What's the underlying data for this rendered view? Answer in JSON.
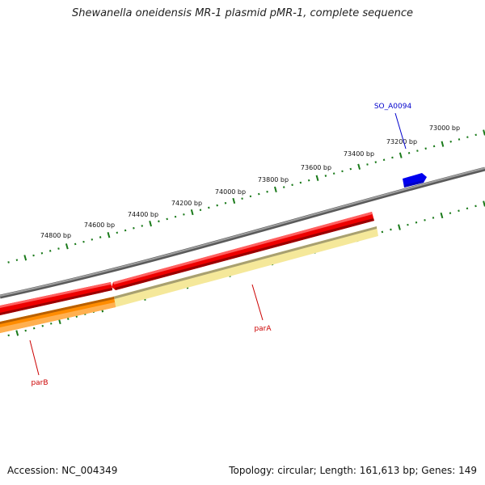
{
  "title": "Shewanella oneidensis MR-1 plasmid pMR-1, complete sequence",
  "footer": {
    "accession_label": "Accession:",
    "accession": "NC_004349",
    "topology_label": "Topology:",
    "topology": "circular",
    "length_label": "Length:",
    "length": "161,613 bp",
    "genes_label": "Genes:",
    "genes": "149"
  },
  "ticks": [
    {
      "label": "73000 bp"
    },
    {
      "label": "73200 bp"
    },
    {
      "label": "73400 bp"
    },
    {
      "label": "73600 bp"
    },
    {
      "label": "73800 bp"
    },
    {
      "label": "74000 bp"
    },
    {
      "label": "74200 bp"
    },
    {
      "label": "74400 bp"
    },
    {
      "label": "74600 bp"
    },
    {
      "label": "74800 bp"
    }
  ],
  "genes": [
    {
      "name": "SO_A0094",
      "color": "#0000cc",
      "strand": "forward"
    },
    {
      "name": "parA",
      "color": "#cc0000",
      "strand": "forward"
    },
    {
      "name": "parB",
      "color": "#cc0000",
      "strand": "forward"
    }
  ],
  "colors": {
    "backbone": "#808080",
    "tick": "#1a7a1a",
    "cds_forward": "#ee0000",
    "cds_highlight": "#f5e89a",
    "cds_orange": "#ff8c00",
    "gene_blue": "#0000ee"
  }
}
